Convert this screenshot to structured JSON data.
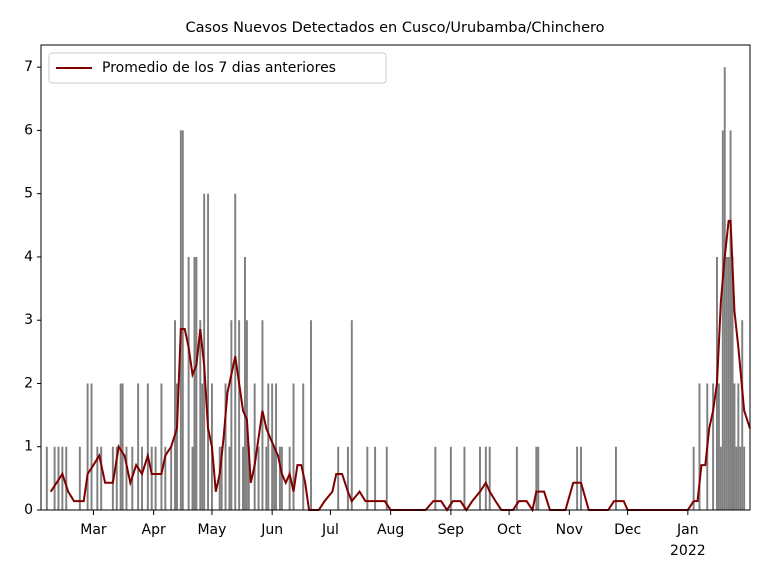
{
  "chart_data": {
    "type": "bar",
    "title": "Casos Nuevos Detectados en Cusco/Urubamba/Chinchero",
    "color": "#808080",
    "x": [
      3,
      7,
      9,
      11,
      13,
      20,
      24,
      26,
      29,
      31,
      37,
      39,
      41,
      42,
      44,
      47,
      50,
      52,
      55,
      57,
      59,
      62,
      64,
      67,
      69,
      70,
      72,
      73,
      76,
      78,
      79,
      80,
      82,
      83,
      84,
      86,
      88,
      92,
      93,
      95,
      97,
      98,
      100,
      102,
      104,
      105,
      106,
      107,
      110,
      112,
      114,
      116,
      117,
      119,
      120,
      121,
      123,
      124,
      128,
      130,
      135,
      139,
      153,
      158,
      160,
      168,
      172,
      178,
      203,
      211,
      218,
      226,
      229,
      231,
      245,
      255,
      256,
      276,
      278,
      296,
      336,
      339,
      343,
      346,
      348,
      349,
      350,
      351,
      352,
      353,
      354,
      355,
      356,
      357,
      358,
      359,
      360,
      361,
      362
    ],
    "values": [
      1,
      1,
      1,
      1,
      1,
      1,
      2,
      2,
      1,
      1,
      1,
      1,
      2,
      2,
      1,
      1,
      2,
      1,
      2,
      1,
      1,
      2,
      1,
      1,
      3,
      2,
      6,
      6,
      4,
      1,
      4,
      4,
      3,
      2,
      5,
      5,
      2,
      1,
      1,
      2,
      1,
      3,
      5,
      3,
      1,
      4,
      3,
      1,
      2,
      1,
      3,
      1,
      2,
      2,
      1,
      2,
      1,
      1,
      1,
      2,
      2,
      3,
      1,
      1,
      3,
      1,
      1,
      1,
      1,
      1,
      1,
      1,
      1,
      1,
      1,
      1,
      1,
      1,
      1,
      1,
      1,
      2,
      2,
      2,
      4,
      2,
      1,
      6,
      7,
      4,
      4,
      6,
      4,
      2,
      1,
      2,
      1,
      3,
      1
    ],
    "line": {
      "type": "line",
      "name": "Promedio de los 7 dias anteriores",
      "color": "#800000",
      "x": [
        5,
        8,
        11,
        14,
        17,
        22,
        24,
        27,
        30,
        33,
        37,
        40,
        43,
        46,
        49,
        52,
        55,
        57,
        62,
        64,
        67,
        70,
        72,
        74,
        76,
        78,
        80,
        82,
        84,
        86,
        88,
        90,
        92,
        94,
        96,
        98,
        100,
        102,
        104,
        106,
        108,
        110,
        112,
        114,
        116,
        118,
        120,
        122,
        124,
        126,
        128,
        130,
        132,
        134,
        136,
        138,
        143,
        146,
        150,
        152,
        155,
        158,
        160,
        164,
        167,
        170,
        173,
        177,
        180,
        198,
        202,
        206,
        209,
        212,
        216,
        219,
        222,
        226,
        229,
        231,
        234,
        237,
        243,
        246,
        250,
        253,
        255,
        259,
        262,
        270,
        274,
        278,
        282,
        292,
        295,
        300,
        302,
        333,
        336,
        338,
        340,
        342,
        344,
        346,
        348,
        350,
        352,
        354,
        355,
        357,
        359,
        362,
        365
      ],
      "values": [
        0.29,
        0.43,
        0.57,
        0.29,
        0.14,
        0.14,
        0.57,
        0.71,
        0.86,
        0.43,
        0.43,
        1.0,
        0.86,
        0.43,
        0.71,
        0.57,
        0.86,
        0.57,
        0.57,
        0.86,
        1.0,
        1.29,
        2.86,
        2.86,
        2.57,
        2.14,
        2.29,
        2.86,
        2.29,
        1.29,
        1.0,
        0.29,
        0.57,
        1.14,
        1.86,
        2.14,
        2.43,
        2.0,
        1.57,
        1.43,
        0.43,
        0.71,
        1.14,
        1.57,
        1.29,
        1.14,
        1.0,
        0.86,
        0.57,
        0.43,
        0.57,
        0.29,
        0.71,
        0.71,
        0.43,
        0.0,
        0.0,
        0.14,
        0.29,
        0.57,
        0.57,
        0.29,
        0.14,
        0.29,
        0.14,
        0.14,
        0.14,
        0.14,
        0.0,
        0.0,
        0.14,
        0.14,
        0.0,
        0.14,
        0.14,
        0.0,
        0.14,
        0.29,
        0.43,
        0.29,
        0.14,
        0.0,
        0.0,
        0.14,
        0.14,
        0.0,
        0.29,
        0.29,
        0.0,
        0.0,
        0.43,
        0.43,
        0.0,
        0.0,
        0.14,
        0.14,
        0.0,
        0.0,
        0.14,
        0.14,
        0.71,
        0.71,
        1.29,
        1.57,
        2.0,
        3.29,
        4.0,
        4.57,
        4.57,
        3.14,
        2.57,
        1.57,
        1.29
      ]
    },
    "xlim": [
      0,
      365
    ],
    "xticks": [
      {
        "value": 27,
        "label": "Mar"
      },
      {
        "value": 58,
        "label": "Apr"
      },
      {
        "value": 88,
        "label": "May"
      },
      {
        "value": 119,
        "label": "Jun"
      },
      {
        "value": 149,
        "label": "Jul"
      },
      {
        "value": 180,
        "label": "Aug"
      },
      {
        "value": 211,
        "label": "Sep"
      },
      {
        "value": 241,
        "label": "Oct"
      },
      {
        "value": 272,
        "label": "Nov"
      },
      {
        "value": 302,
        "label": "Dec"
      },
      {
        "value": 333,
        "label": "Jan"
      }
    ],
    "year_label": "2022",
    "ylim": [
      0,
      7.35
    ],
    "yticks": [
      0,
      1,
      2,
      3,
      4,
      5,
      6,
      7
    ],
    "legend": "upper left"
  }
}
